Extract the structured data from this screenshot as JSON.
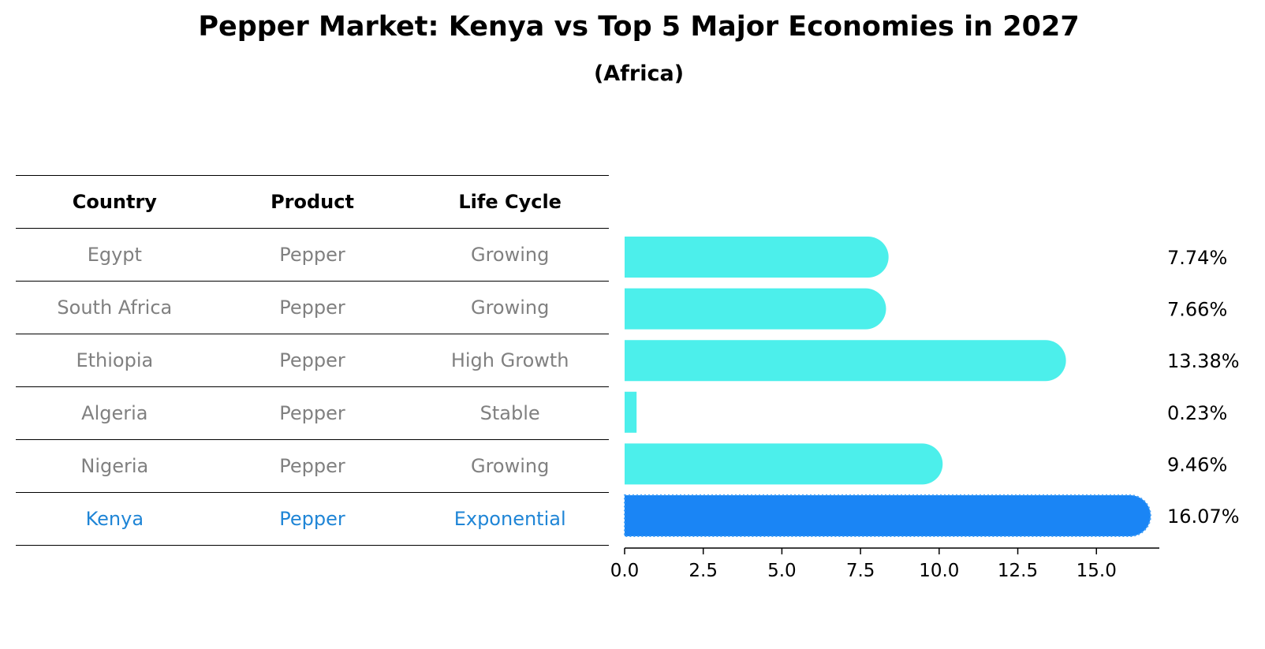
{
  "chart_data": {
    "type": "bar",
    "orientation": "horizontal",
    "title": "Pepper Market: Kenya vs Top 5 Major Economies in 2027",
    "subtitle": "(Africa)",
    "categories": [
      "Egypt",
      "South Africa",
      "Ethiopia",
      "Algeria",
      "Nigeria",
      "Kenya"
    ],
    "values": [
      7.74,
      7.66,
      13.38,
      0.23,
      9.46,
      16.07
    ],
    "value_labels": [
      "7.74%",
      "7.66%",
      "13.38%",
      "0.23%",
      "9.46%",
      "16.07%"
    ],
    "xlim": [
      0,
      17
    ],
    "xticks": [
      0.0,
      2.5,
      5.0,
      7.5,
      10.0,
      12.5,
      15.0
    ],
    "xtick_labels": [
      "0.0",
      "2.5",
      "5.0",
      "7.5",
      "10.0",
      "12.5",
      "15.0"
    ],
    "highlight": "Kenya",
    "colors": {
      "bar": "#4cefeb",
      "highlight": "#1a85f5"
    }
  },
  "table": {
    "headers": [
      "Country",
      "Product",
      "Life Cycle"
    ],
    "rows": [
      [
        "Egypt",
        "Pepper",
        "Growing"
      ],
      [
        "South Africa",
        "Pepper",
        "Growing"
      ],
      [
        "Ethiopia",
        "Pepper",
        "High Growth"
      ],
      [
        "Algeria",
        "Pepper",
        "Stable"
      ],
      [
        "Nigeria",
        "Pepper",
        "Growing"
      ],
      [
        "Kenya",
        "Pepper",
        "Exponential"
      ]
    ]
  }
}
